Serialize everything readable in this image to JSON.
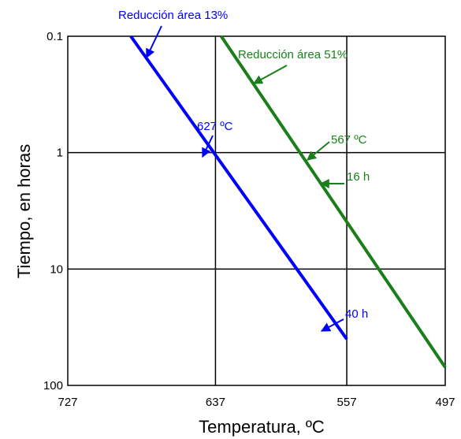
{
  "chart_data": {
    "type": "line",
    "xlabel": "Temperatura, ºC",
    "ylabel": "Tiempo, en horas",
    "x_reversed": true,
    "xlim": [
      727,
      497
    ],
    "x_ticks": [
      "727",
      "637",
      "557",
      "497"
    ],
    "y_scale": "log",
    "y_reversed": true,
    "ylim": [
      0.1,
      100
    ],
    "y_ticks": [
      "0.1",
      "1",
      "10",
      "100"
    ],
    "grid": true,
    "series": [
      {
        "name": "Reducción área 13%",
        "color": "#0000ff",
        "points": [
          [
            688.6,
            0.1
          ],
          [
            557,
            40
          ]
        ]
      },
      {
        "name": "Reducción área 51%",
        "color": "#1a7f1a",
        "points": [
          [
            633.5,
            0.1
          ],
          [
            497,
            70
          ]
        ]
      }
    ],
    "annotations": [
      {
        "id": "label13",
        "text": "Reducción área 13%",
        "color": "#0000ff"
      },
      {
        "id": "label51",
        "text": "Reducción área 51%",
        "color": "#1a7f1a"
      },
      {
        "id": "t627",
        "text": "627 ºC",
        "color": "#0000ff"
      },
      {
        "id": "t567",
        "text": "567 ºC",
        "color": "#1a7f1a"
      },
      {
        "id": "h16",
        "text": "16 h",
        "color": "#1a7f1a"
      },
      {
        "id": "h40",
        "text": "40 h",
        "color": "#0000ff"
      }
    ]
  }
}
